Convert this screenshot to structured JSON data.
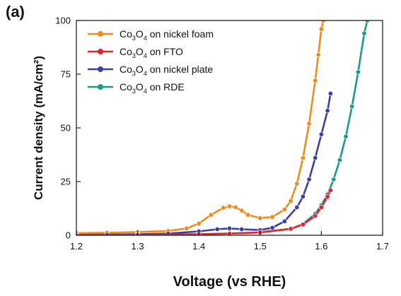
{
  "panel_label": "(a)",
  "colors": {
    "nickel_foam": "#f08a1c",
    "fto": "#e8202a",
    "nickel_plate": "#3a3fa6",
    "rde": "#1a9a8c"
  },
  "chart_data": {
    "type": "line",
    "xlabel": "Voltage (vs RHE)",
    "ylabel": "Current density (mA/cm²)",
    "xlim": [
      1.2,
      1.7
    ],
    "ylim": [
      0,
      100
    ],
    "xticks": [
      "1.2",
      "1.3",
      "1.4",
      "1.5",
      "1.6",
      "1.7"
    ],
    "yticks": [
      "0",
      "25",
      "50",
      "75",
      "100"
    ],
    "legend_position": "top-left",
    "series": [
      {
        "name": "Co3O4 on nickel foam",
        "formula": {
          "a": "Co",
          "s1": "3",
          "b": "O",
          "s2": "4",
          "rest": " on nickel foam"
        },
        "color": "#f08a1c",
        "x": [
          1.2,
          1.25,
          1.3,
          1.35,
          1.38,
          1.4,
          1.42,
          1.44,
          1.45,
          1.46,
          1.47,
          1.48,
          1.5,
          1.52,
          1.54,
          1.55,
          1.56,
          1.57,
          1.58,
          1.59,
          1.595,
          1.6,
          1.603
        ],
        "y": [
          1.0,
          1.2,
          1.5,
          2.0,
          3.2,
          5.5,
          9.5,
          12.8,
          13.5,
          13.0,
          11.5,
          9.5,
          8.0,
          8.5,
          12.0,
          16.0,
          24.0,
          36.0,
          52.0,
          72.0,
          84.0,
          96.0,
          100.0
        ]
      },
      {
        "name": "Co3O4 on FTO",
        "formula": {
          "a": "Co",
          "s1": "3",
          "b": "O",
          "s2": "4",
          "rest": " on FTO"
        },
        "color": "#e8202a",
        "x": [
          1.2,
          1.3,
          1.4,
          1.45,
          1.5,
          1.55,
          1.57,
          1.59,
          1.6,
          1.61,
          1.615
        ],
        "y": [
          0.0,
          0.2,
          0.5,
          0.8,
          1.3,
          3.0,
          5.0,
          9.0,
          13.0,
          18.0,
          21.0
        ]
      },
      {
        "name": "Co3O4 on nickel plate",
        "formula": {
          "a": "Co",
          "s1": "3",
          "b": "O",
          "s2": "4",
          "rest": " on nickel plate"
        },
        "color": "#3a3fa6",
        "x": [
          1.2,
          1.25,
          1.3,
          1.35,
          1.4,
          1.43,
          1.45,
          1.47,
          1.5,
          1.52,
          1.54,
          1.56,
          1.57,
          1.58,
          1.59,
          1.6,
          1.61,
          1.615
        ],
        "y": [
          0.2,
          0.3,
          0.5,
          0.8,
          1.8,
          2.8,
          3.2,
          2.8,
          2.4,
          3.5,
          6.5,
          13.0,
          18.0,
          26.0,
          36.0,
          47.0,
          58.0,
          66.0
        ]
      },
      {
        "name": "Co3O4 on RDE",
        "formula": {
          "a": "Co",
          "s1": "3",
          "b": "O",
          "s2": "4",
          "rest": " on RDE"
        },
        "color": "#1a9a8c",
        "x": [
          1.2,
          1.3,
          1.4,
          1.45,
          1.5,
          1.55,
          1.57,
          1.59,
          1.6,
          1.61,
          1.62,
          1.63,
          1.64,
          1.65,
          1.66,
          1.67,
          1.675
        ],
        "y": [
          0.0,
          0.2,
          0.5,
          0.8,
          1.3,
          3.0,
          5.2,
          10.0,
          14.0,
          19.0,
          26.0,
          35.0,
          46.0,
          60.0,
          76.0,
          94.0,
          100.0
        ]
      }
    ]
  }
}
